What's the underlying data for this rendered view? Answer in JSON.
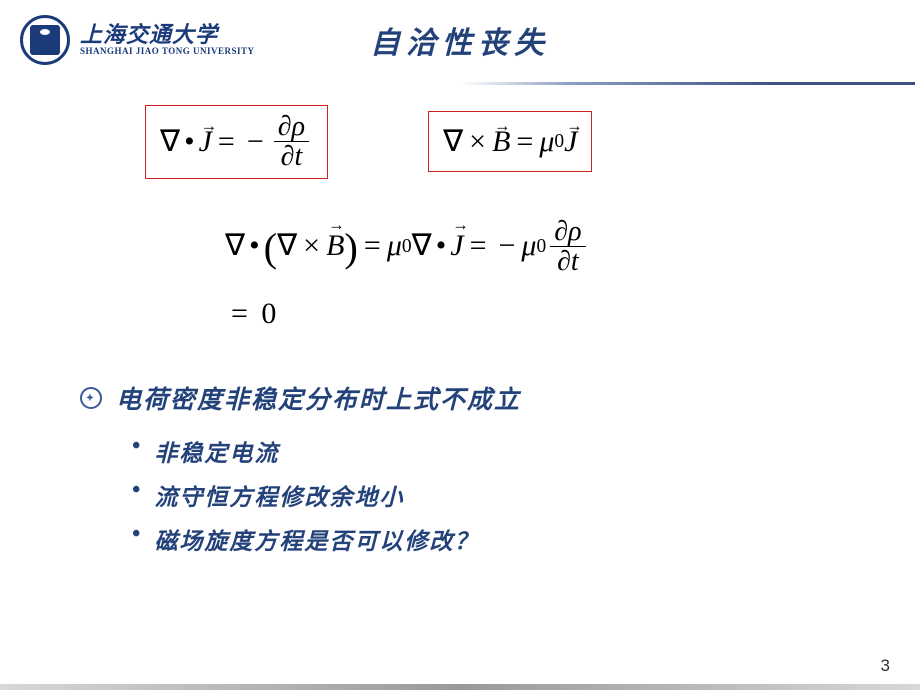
{
  "header": {
    "university_cn": "上海交通大学",
    "university_en": "SHANGHAI JIAO TONG UNIVERSITY",
    "title": "自洽性丧失"
  },
  "equations": {
    "box1": {
      "lhs_nabla": "∇",
      "lhs_dot": "•",
      "lhs_J": "J",
      "eq": "=",
      "neg": "−",
      "partial": "∂",
      "rho": "ρ",
      "t": "t"
    },
    "box2": {
      "lhs_nabla": "∇",
      "cross": "×",
      "B": "B",
      "eq": "=",
      "mu": "μ",
      "sub0": "0",
      "J": "J"
    },
    "long": {
      "nabla": "∇",
      "dot": "•",
      "cross": "×",
      "B": "B",
      "eq": "=",
      "mu": "μ",
      "sub0": "0",
      "J": "J",
      "neg": "−",
      "partial": "∂",
      "rho": "ρ",
      "t": "t",
      "zero": "0"
    }
  },
  "bullets": {
    "main": "电荷密度非稳定分布时上式不成立",
    "sub": [
      "非稳定电流",
      "流守恒方程修改余地小",
      "磁场旋度方程是否可以修改？"
    ]
  },
  "page_number": "3",
  "colors": {
    "title": "#24427a",
    "box_border": "#d02020",
    "text": "#000000",
    "bullet_text": "#24427a"
  }
}
